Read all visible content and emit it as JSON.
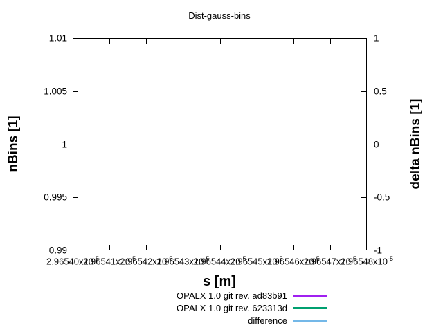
{
  "figure": {
    "title": "Dist-gauss-bins",
    "xlabel": "s [m]",
    "ylabel_left": "nBins [1]",
    "ylabel_right": "delta nBins [1]"
  },
  "chart_data": {
    "type": "line",
    "title": "Dist-gauss-bins",
    "xlabel": "s [m]",
    "ylabel_left": "nBins [1]",
    "ylabel_right": "delta nBins [1]",
    "x_ticks": {
      "mantissas": [
        "2.96540",
        "2.96541",
        "2.96542",
        "2.96543",
        "2.96544",
        "2.96545",
        "2.96546",
        "2.96547",
        "2.96548"
      ],
      "suffix": "x10",
      "exponent": "-5"
    },
    "y_left_ticks": [
      "1.01",
      "1.005",
      "1",
      "0.995",
      "0.99"
    ],
    "y_right_ticks": [
      "1",
      "0.5",
      "0",
      "-0.5",
      "-1"
    ],
    "ylim_left": [
      0.99,
      1.01
    ],
    "ylim_right": [
      -1,
      1
    ],
    "grid": false,
    "legend_position": "below-plot-center",
    "series": [
      {
        "name": "OPALX 1.0 git rev. ad83b91",
        "color": "#a020f0",
        "values": []
      },
      {
        "name": "OPALX 1.0 git rev. 623313d",
        "color": "#00a070",
        "values": []
      },
      {
        "name": "difference",
        "color": "#74b8e8",
        "values": []
      }
    ]
  }
}
